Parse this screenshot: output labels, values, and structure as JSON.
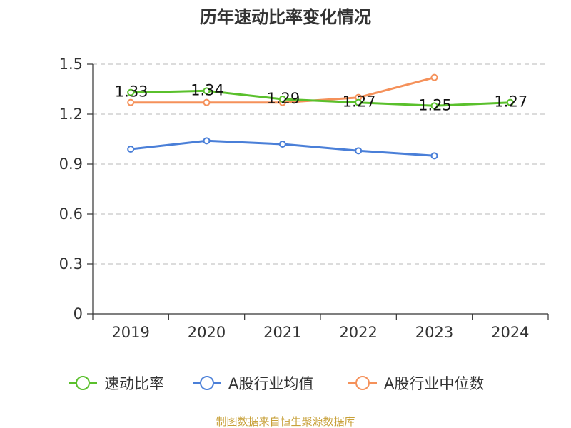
{
  "chart_data": {
    "type": "line",
    "title": "历年速动比率变化情况",
    "categories": [
      "2019",
      "2020",
      "2021",
      "2022",
      "2023",
      "2024"
    ],
    "ylim": [
      0,
      1.5
    ],
    "yticks": [
      "0",
      "0.3",
      "0.6",
      "0.9",
      "1.2",
      "1.5"
    ],
    "grid": true,
    "legend_position": "bottom",
    "series": [
      {
        "name": "速动比率",
        "color": "#5ac02c",
        "values": [
          1.33,
          1.34,
          1.29,
          1.27,
          1.25,
          1.27
        ],
        "labels": [
          "1.33",
          "1.34",
          "1.29",
          "1.27",
          "1.25",
          "1.27"
        ]
      },
      {
        "name": "A股行业均值",
        "color": "#4a7fd8",
        "values": [
          0.99,
          1.04,
          1.02,
          0.98,
          0.95,
          null
        ]
      },
      {
        "name": "A股行业中位数",
        "color": "#f5915a",
        "values": [
          1.27,
          1.27,
          1.27,
          1.3,
          1.42,
          null
        ]
      }
    ]
  },
  "footer": {
    "source": "制图数据来自恒生聚源数据库"
  }
}
